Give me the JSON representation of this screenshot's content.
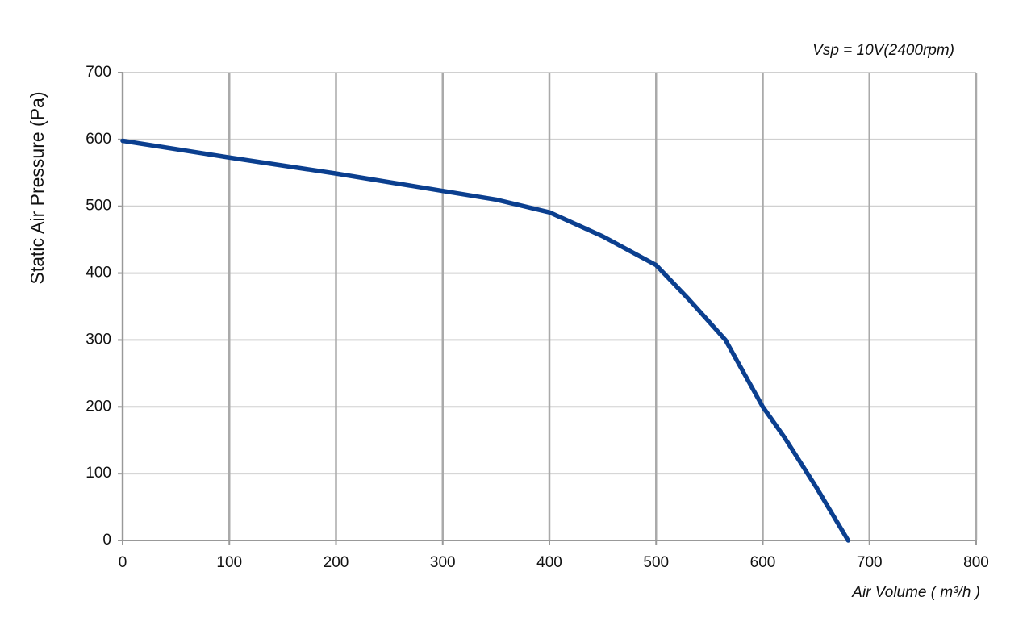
{
  "chart_data": {
    "type": "line",
    "annotation": "Vsp = 10V(2400rpm)",
    "x_label": "Air Volume ( m³/h )",
    "y_label": "Static Air Pressure  (Pa)",
    "x": [
      0,
      100,
      200,
      300,
      350,
      400,
      450,
      500,
      530,
      565,
      600,
      620,
      650,
      680
    ],
    "series": [
      {
        "color": "#0b3f8f",
        "values": [
          598,
          573,
          549,
          523,
          510,
          491,
          455,
          412,
          362,
          300,
          200,
          155,
          80,
          0
        ]
      }
    ],
    "xlim": [
      0,
      800
    ],
    "xticks": [
      0,
      100,
      200,
      300,
      400,
      500,
      600,
      700,
      800
    ],
    "ylim": [
      0,
      700
    ],
    "yticks": [
      0,
      100,
      200,
      300,
      400,
      500,
      600,
      700
    ],
    "grid": true
  }
}
